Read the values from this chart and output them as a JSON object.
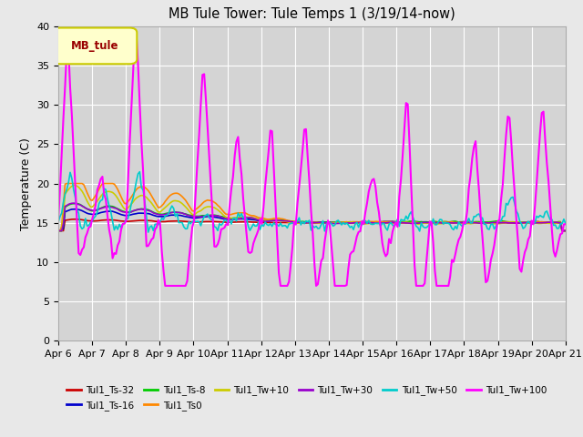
{
  "title": "MB Tule Tower: Tule Temps 1 (3/19/14-now)",
  "ylabel": "Temperature (C)",
  "ylim": [
    0,
    40
  ],
  "yticks": [
    0,
    5,
    10,
    15,
    20,
    25,
    30,
    35,
    40
  ],
  "xlabel_dates": [
    "Apr 6",
    "Apr 7",
    "Apr 8",
    "Apr 9",
    "Apr 10",
    "Apr 11",
    "Apr 12",
    "Apr 13",
    "Apr 14",
    "Apr 15",
    "Apr 16",
    "Apr 17",
    "Apr 18",
    "Apr 19",
    "Apr 20",
    "Apr 21"
  ],
  "bg_color": "#e8e8e8",
  "plot_bg_color": "#d4d4d4",
  "legend_box_facecolor": "#ffffcc",
  "legend_box_edgecolor": "#cccc00",
  "legend_label": "MB_tule",
  "legend_label_color": "#990000",
  "series": [
    {
      "name": "Tul1_Ts-32",
      "color": "#cc0000",
      "lw": 1.2
    },
    {
      "name": "Tul1_Ts-16",
      "color": "#0000cc",
      "lw": 1.2
    },
    {
      "name": "Tul1_Ts-8",
      "color": "#00cc00",
      "lw": 1.2
    },
    {
      "name": "Tul1_Ts0",
      "color": "#ff8800",
      "lw": 1.2
    },
    {
      "name": "Tul1_Tw+10",
      "color": "#cccc00",
      "lw": 1.2
    },
    {
      "name": "Tul1_Tw+30",
      "color": "#9900cc",
      "lw": 1.2
    },
    {
      "name": "Tul1_Tw+50",
      "color": "#00cccc",
      "lw": 1.2
    },
    {
      "name": "Tul1_Tw+100",
      "color": "#ff00ff",
      "lw": 1.5
    }
  ],
  "figsize": [
    6.4,
    4.8
  ],
  "dpi": 100
}
